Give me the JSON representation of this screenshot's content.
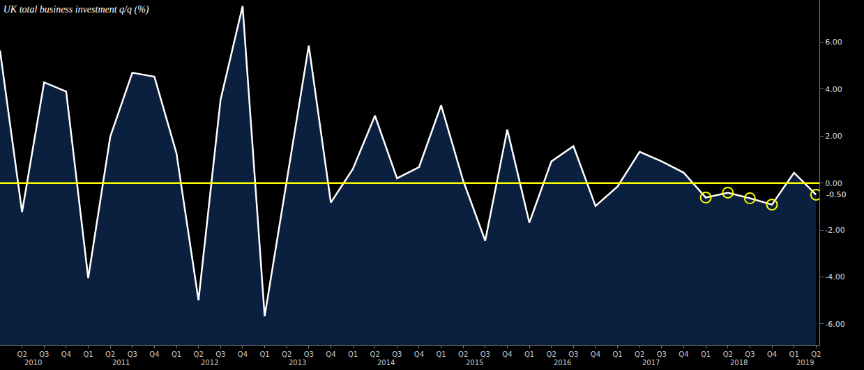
{
  "chart_data": {
    "type": "area",
    "title": "UK total business investment q/q (%)",
    "categories": [
      null,
      "Q2",
      "Q3",
      "Q4",
      "Q1",
      "Q2",
      "Q3",
      "Q4",
      "Q1",
      "Q2",
      "Q3",
      "Q4",
      "Q1",
      "Q2",
      "Q3",
      "Q4",
      "Q1",
      "Q2",
      "Q3",
      "Q4",
      "Q1",
      "Q2",
      "Q3",
      "Q4",
      "Q1",
      "Q2",
      "Q3",
      "Q4",
      "Q1",
      "Q2",
      "Q3",
      "Q4",
      "Q1",
      "Q2",
      "Q3",
      "Q4",
      "Q1",
      "Q2"
    ],
    "year_groups": [
      {
        "label": "2010",
        "size": 4
      },
      {
        "label": "2011",
        "size": 4
      },
      {
        "label": "2012",
        "size": 4
      },
      {
        "label": "2013",
        "size": 4
      },
      {
        "label": "2014",
        "size": 4
      },
      {
        "label": "2015",
        "size": 4
      },
      {
        "label": "2016",
        "size": 4
      },
      {
        "label": "2017",
        "size": 4
      },
      {
        "label": "2018",
        "size": 4
      },
      {
        "label": "2019",
        "size": 2
      }
    ],
    "values": [
      5.65,
      -1.24,
      4.29,
      3.9,
      -4.05,
      1.98,
      4.7,
      4.53,
      1.27,
      -5.0,
      3.55,
      7.54,
      -5.68,
      0.1,
      5.86,
      -0.83,
      0.6,
      2.87,
      0.2,
      0.68,
      3.31,
      0.1,
      -2.46,
      2.28,
      -1.69,
      0.92,
      1.57,
      -0.98,
      -0.15,
      1.33,
      0.92,
      0.44,
      -0.62,
      -0.41,
      -0.65,
      -0.92,
      0.44,
      -0.5
    ],
    "color": "#ffffff",
    "highlights": [
      32,
      33,
      34,
      35,
      37
    ],
    "reference_line": {
      "value": 0
    },
    "annotations": [
      {
        "text": "-0.50",
        "y": -0.5
      }
    ],
    "ylim": [
      -6.9,
      7.8
    ],
    "yticks": [
      {
        "value": -6,
        "label": "-6.00"
      },
      {
        "value": -4,
        "label": "-4.00"
      },
      {
        "value": -2,
        "label": "-2.00"
      },
      {
        "value": 0,
        "label": "0.00"
      },
      {
        "value": 2,
        "label": "2.00"
      },
      {
        "value": 4,
        "label": "4.00"
      },
      {
        "value": 6,
        "label": "6.00"
      }
    ],
    "grid": false
  }
}
